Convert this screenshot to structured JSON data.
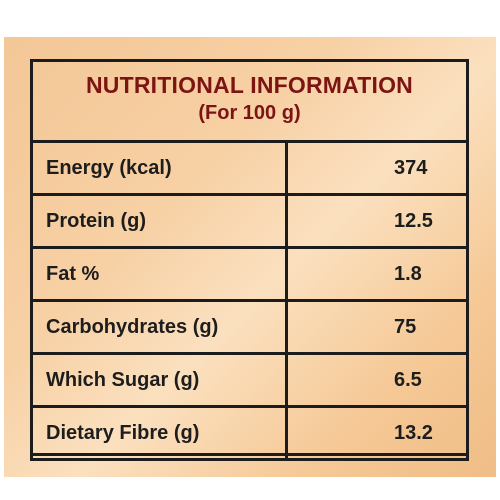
{
  "label": {
    "title": "NUTRITIONAL INFORMATION",
    "subtitle": "(For 100 g)",
    "rows": [
      {
        "name": "Energy (kcal)",
        "value": "374"
      },
      {
        "name": "Protein (g)",
        "value": "12.5"
      },
      {
        "name": "Fat %",
        "value": "1.8"
      },
      {
        "name": "Carbohydrates (g)",
        "value": "75"
      },
      {
        "name": "Which Sugar (g)",
        "value": "6.5"
      },
      {
        "name": "Dietary Fibre (g)",
        "value": "13.2"
      }
    ]
  },
  "colors": {
    "background": "#f5c895",
    "title": "#7d1414",
    "text": "#1d1d1d",
    "border": "#1c1c1c"
  }
}
